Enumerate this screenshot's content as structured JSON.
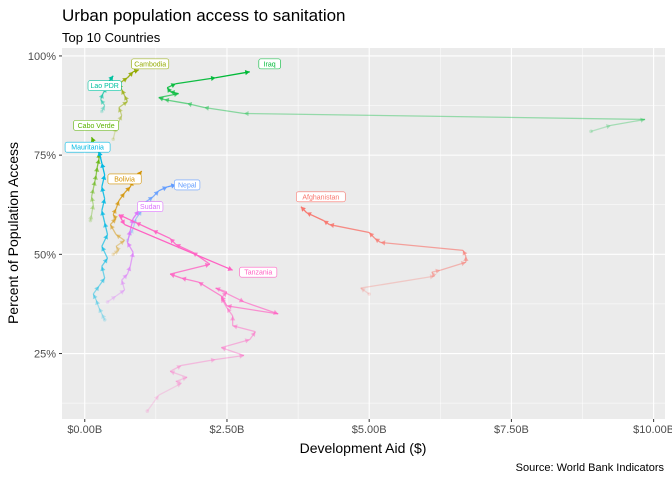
{
  "chart_data": {
    "type": "line",
    "title": "Urban population access to sanitation",
    "subtitle": "Top 10 Countries",
    "xlabel": "Development Aid ($)",
    "ylabel": "Percent of Population Access",
    "caption": "Source: World Bank Indicators",
    "xlim": [
      -0.4,
      10.2
    ],
    "ylim": [
      8.5,
      102
    ],
    "x_ticks": [
      0,
      2.5,
      5,
      7.5,
      10
    ],
    "x_tick_labels": [
      "$0.00B",
      "$2.50B",
      "$5.00B",
      "$7.50B",
      "$10.00B"
    ],
    "y_ticks": [
      25,
      50,
      75,
      100
    ],
    "y_tick_labels": [
      "25%",
      "50%",
      "75%",
      "100%"
    ],
    "grid": true,
    "legend": "none",
    "series": [
      {
        "name": "Afghanistan",
        "color": "#F8766D",
        "points": [
          [
            5.0,
            40.0
          ],
          [
            4.85,
            41.5
          ],
          [
            6.15,
            44.5
          ],
          [
            6.1,
            45.5
          ],
          [
            6.25,
            46.0
          ],
          [
            6.7,
            48.0
          ],
          [
            6.7,
            49.5
          ],
          [
            6.65,
            51.0
          ],
          [
            5.2,
            53.0
          ],
          [
            5.1,
            54.0
          ],
          [
            5.0,
            55.5
          ],
          [
            4.3,
            57.5
          ],
          [
            4.2,
            58.5
          ],
          [
            3.9,
            60.5
          ],
          [
            3.8,
            62.0
          ]
        ]
      },
      {
        "name": "Bolivia",
        "color": "#D39200",
        "points": [
          [
            0.5,
            50.0
          ],
          [
            0.6,
            51.0
          ],
          [
            0.55,
            52.0
          ],
          [
            0.7,
            53.5
          ],
          [
            0.55,
            55.0
          ],
          [
            0.45,
            57.5
          ],
          [
            0.55,
            59.0
          ],
          [
            0.5,
            60.0
          ],
          [
            0.55,
            61.5
          ],
          [
            0.6,
            63.5
          ],
          [
            0.7,
            65.5
          ],
          [
            0.8,
            67.0
          ],
          [
            0.85,
            68.5
          ],
          [
            0.95,
            70.0
          ],
          [
            1.0,
            71.0
          ]
        ]
      },
      {
        "name": "Cambodia",
        "color": "#93AA00",
        "points": [
          [
            0.5,
            79.0
          ],
          [
            0.55,
            82.0
          ],
          [
            0.65,
            85.0
          ],
          [
            0.6,
            87.0
          ],
          [
            0.75,
            88.5
          ],
          [
            0.7,
            90.0
          ],
          [
            0.65,
            91.5
          ],
          [
            0.6,
            93.0
          ],
          [
            0.75,
            94.5
          ],
          [
            0.85,
            96.0
          ],
          [
            0.95,
            96.5
          ]
        ]
      },
      {
        "name": "Cabo Verde",
        "color": "#5BB300",
        "points": [
          [
            0.1,
            58.5
          ],
          [
            0.12,
            60.0
          ],
          [
            0.15,
            62.5
          ],
          [
            0.12,
            64.5
          ],
          [
            0.15,
            66.5
          ],
          [
            0.18,
            68.5
          ],
          [
            0.2,
            70.0
          ],
          [
            0.22,
            72.0
          ],
          [
            0.25,
            74.0
          ],
          [
            0.25,
            75.5
          ],
          [
            0.18,
            77.0
          ],
          [
            0.15,
            78.5
          ],
          [
            0.12,
            79.5
          ]
        ]
      },
      {
        "name": "Iraq",
        "color": "#00BA38",
        "points": [
          [
            8.9,
            81.0
          ],
          [
            9.25,
            82.5
          ],
          [
            9.85,
            84.0
          ],
          [
            2.8,
            85.5
          ],
          [
            2.1,
            87.0
          ],
          [
            1.8,
            88.0
          ],
          [
            1.4,
            89.0
          ],
          [
            1.3,
            89.5
          ],
          [
            1.65,
            90.5
          ],
          [
            1.5,
            91.0
          ],
          [
            1.45,
            92.0
          ],
          [
            1.6,
            93.0
          ],
          [
            2.3,
            94.5
          ],
          [
            2.9,
            96.0
          ]
        ]
      },
      {
        "name": "Lao PDR",
        "color": "#00C19F",
        "points": [
          [
            0.3,
            86.0
          ],
          [
            0.35,
            87.5
          ],
          [
            0.28,
            89.0
          ],
          [
            0.32,
            90.5
          ],
          [
            0.38,
            92.0
          ],
          [
            0.42,
            93.5
          ],
          [
            0.5,
            95.0
          ]
        ]
      },
      {
        "name": "Mauritania",
        "color": "#00B9E3",
        "points": [
          [
            0.35,
            33.5
          ],
          [
            0.3,
            35.0
          ],
          [
            0.25,
            36.5
          ],
          [
            0.2,
            38.5
          ],
          [
            0.15,
            40.0
          ],
          [
            0.25,
            42.0
          ],
          [
            0.35,
            44.0
          ],
          [
            0.3,
            47.0
          ],
          [
            0.4,
            49.0
          ],
          [
            0.3,
            52.0
          ],
          [
            0.4,
            55.0
          ],
          [
            0.35,
            58.0
          ],
          [
            0.3,
            61.0
          ],
          [
            0.35,
            64.0
          ],
          [
            0.3,
            67.0
          ],
          [
            0.35,
            70.0
          ],
          [
            0.3,
            73.0
          ],
          [
            0.25,
            76.0
          ]
        ]
      },
      {
        "name": "Nepal",
        "color": "#619CFF",
        "points": [
          [
            0.75,
            53.5
          ],
          [
            0.85,
            56.5
          ],
          [
            0.9,
            59.0
          ],
          [
            1.0,
            61.0
          ],
          [
            1.05,
            63.0
          ],
          [
            1.2,
            64.5
          ],
          [
            1.3,
            66.0
          ],
          [
            1.45,
            67.0
          ],
          [
            1.6,
            67.5
          ]
        ]
      },
      {
        "name": "Sudan",
        "color": "#DB72FB",
        "points": [
          [
            0.4,
            38.0
          ],
          [
            0.55,
            39.5
          ],
          [
            0.7,
            41.0
          ],
          [
            0.65,
            43.5
          ],
          [
            0.75,
            45.0
          ],
          [
            0.8,
            47.0
          ],
          [
            0.85,
            50.5
          ],
          [
            0.75,
            53.0
          ],
          [
            0.8,
            56.0
          ],
          [
            0.85,
            59.0
          ],
          [
            0.95,
            61.0
          ],
          [
            1.1,
            62.0
          ]
        ]
      },
      {
        "name": "Tanzania",
        "color": "#FF61C3",
        "points": [
          [
            1.1,
            10.5
          ],
          [
            1.3,
            14.5
          ],
          [
            1.7,
            17.5
          ],
          [
            1.6,
            18.0
          ],
          [
            1.8,
            19.0
          ],
          [
            1.5,
            20.5
          ],
          [
            1.7,
            22.0
          ],
          [
            2.3,
            23.5
          ],
          [
            2.8,
            24.5
          ],
          [
            2.4,
            26.5
          ],
          [
            2.9,
            28.5
          ],
          [
            3.0,
            30.5
          ],
          [
            2.6,
            32.0
          ],
          [
            2.6,
            34.5
          ],
          [
            2.5,
            36.5
          ],
          [
            2.4,
            39.0
          ],
          [
            2.5,
            40.5
          ],
          [
            2.3,
            41.5
          ],
          [
            2.8,
            38.0
          ],
          [
            3.4,
            35.0
          ],
          [
            2.5,
            37.0
          ],
          [
            2.4,
            39.5
          ],
          [
            2.0,
            43.0
          ],
          [
            1.7,
            44.0
          ],
          [
            1.5,
            45.0
          ],
          [
            2.2,
            47.5
          ],
          [
            1.9,
            50.5
          ],
          [
            1.6,
            52.5
          ],
          [
            1.5,
            54.0
          ],
          [
            1.2,
            56.0
          ],
          [
            0.9,
            58.0
          ],
          [
            0.6,
            60.0
          ],
          [
            0.7,
            57.5
          ],
          [
            2.6,
            46.0
          ]
        ]
      }
    ],
    "labels": [
      {
        "text": "Iraq",
        "series": "Iraq",
        "at": [
          3.25,
          98.0
        ]
      },
      {
        "text": "Cambodia",
        "series": "Cambodia",
        "at": [
          1.15,
          98.0
        ]
      },
      {
        "text": "Lao PDR",
        "series": "Lao PDR",
        "at": [
          0.35,
          92.5
        ]
      },
      {
        "text": "Cabo Verde",
        "series": "Cabo Verde",
        "at": [
          0.2,
          82.5
        ]
      },
      {
        "text": "Mauritania",
        "series": "Mauritania",
        "at": [
          0.05,
          77.0
        ]
      },
      {
        "text": "Bolivia",
        "series": "Bolivia",
        "at": [
          0.7,
          69.0
        ]
      },
      {
        "text": "Nepal",
        "series": "Nepal",
        "at": [
          1.8,
          67.5
        ]
      },
      {
        "text": "Sudan",
        "series": "Sudan",
        "at": [
          1.15,
          62.0
        ]
      },
      {
        "text": "Afghanistan",
        "series": "Afghanistan",
        "at": [
          4.15,
          64.5
        ]
      },
      {
        "text": "Tanzania",
        "series": "Tanzania",
        "at": [
          3.05,
          45.5
        ]
      }
    ]
  }
}
